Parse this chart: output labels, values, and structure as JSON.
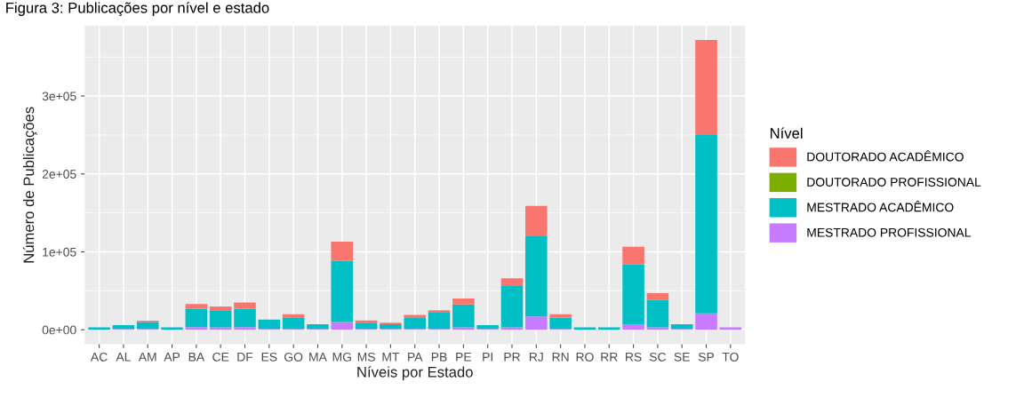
{
  "chart_data": {
    "type": "bar",
    "title": "Figura 3: Publicações por nível e estado",
    "xlabel": "Níveis por Estado",
    "ylabel": "Número de Publicações",
    "legend_title": "Nível",
    "categories": [
      "AC",
      "AL",
      "AM",
      "AP",
      "BA",
      "CE",
      "DF",
      "ES",
      "GO",
      "MA",
      "MG",
      "MS",
      "MT",
      "PA",
      "PB",
      "PE",
      "PI",
      "PR",
      "RJ",
      "RN",
      "RO",
      "RR",
      "RS",
      "SC",
      "SE",
      "SP",
      "TO"
    ],
    "stacked": true,
    "grid": true,
    "legend": "right",
    "ylim": [
      -18600,
      390000
    ],
    "yticks": [
      {
        "value": 0,
        "label": "0e+00"
      },
      {
        "value": 100000,
        "label": "1e+05"
      },
      {
        "value": 200000,
        "label": "2e+05"
      },
      {
        "value": 300000,
        "label": "3e+05"
      }
    ],
    "series": [
      {
        "name": "MESTRADO PROFISSIONAL",
        "color": "#c77cff",
        "values": [
          0,
          1000,
          1000,
          0,
          3500,
          3000,
          3500,
          1000,
          1000,
          1000,
          10000,
          1000,
          1000,
          1000,
          1000,
          3000,
          1000,
          3000,
          17000,
          1000,
          0,
          0,
          6500,
          3000,
          1000,
          21000,
          3000
        ]
      },
      {
        "name": "MESTRADO ACADÊMICO",
        "color": "#00bfc4",
        "values": [
          3000,
          5000,
          9000,
          3000,
          23500,
          22000,
          23500,
          12000,
          15000,
          6000,
          78500,
          8000,
          6000,
          15000,
          21000,
          29500,
          5000,
          53000,
          103000,
          14500,
          3000,
          3000,
          77500,
          35000,
          6000,
          229000,
          0
        ]
      },
      {
        "name": "DOUTORADO PROFISSIONAL",
        "color": "#7cae00",
        "values": [
          0,
          0,
          0,
          0,
          0,
          0,
          0,
          0,
          0,
          0,
          0,
          0,
          0,
          0,
          0,
          0,
          0,
          0,
          0,
          0,
          0,
          0,
          0,
          0,
          0,
          0,
          0
        ]
      },
      {
        "name": "DOUTORADO ACADÊMICO",
        "color": "#f8766d",
        "values": [
          0,
          0,
          1500,
          0,
          6000,
          5000,
          8000,
          0,
          4000,
          0,
          24500,
          3000,
          2000,
          3000,
          3000,
          7500,
          0,
          10000,
          39000,
          4500,
          0,
          0,
          22500,
          9000,
          0,
          122000,
          0
        ]
      }
    ]
  }
}
